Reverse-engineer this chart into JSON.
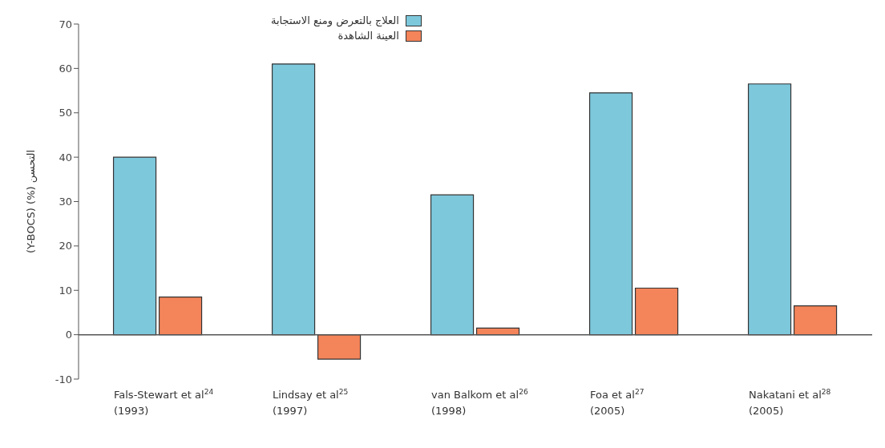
{
  "chart_data": {
    "type": "bar",
    "ylabel": "(Y-BOCS) (%) التحسن",
    "categories": [
      "Fals-Stewart et al$^{24}$\n(1993)",
      "Lindsay et al$^{25}$\n(1997)",
      "van Balkom et al$^{26}$\n(1998)",
      "Foa et al$^{27}$\n(2005)",
      "Nakatani et al$^{28}$\n(2005)"
    ],
    "series": [
      {
        "name": "العلاج بالتعرض ومنع الاستجابة",
        "color": "#7ec8dc",
        "values": [
          40,
          61,
          31.5,
          54.5,
          56.5
        ]
      },
      {
        "name": "العينة الشاهدة",
        "color": "#f4845a",
        "values": [
          8.5,
          -5.5,
          1.5,
          10.5,
          6.5
        ]
      }
    ],
    "ylim": [
      -10,
      70
    ],
    "yticks": [
      -10,
      0,
      10,
      20,
      30,
      40,
      50,
      60,
      70
    ],
    "legend": "top left"
  }
}
